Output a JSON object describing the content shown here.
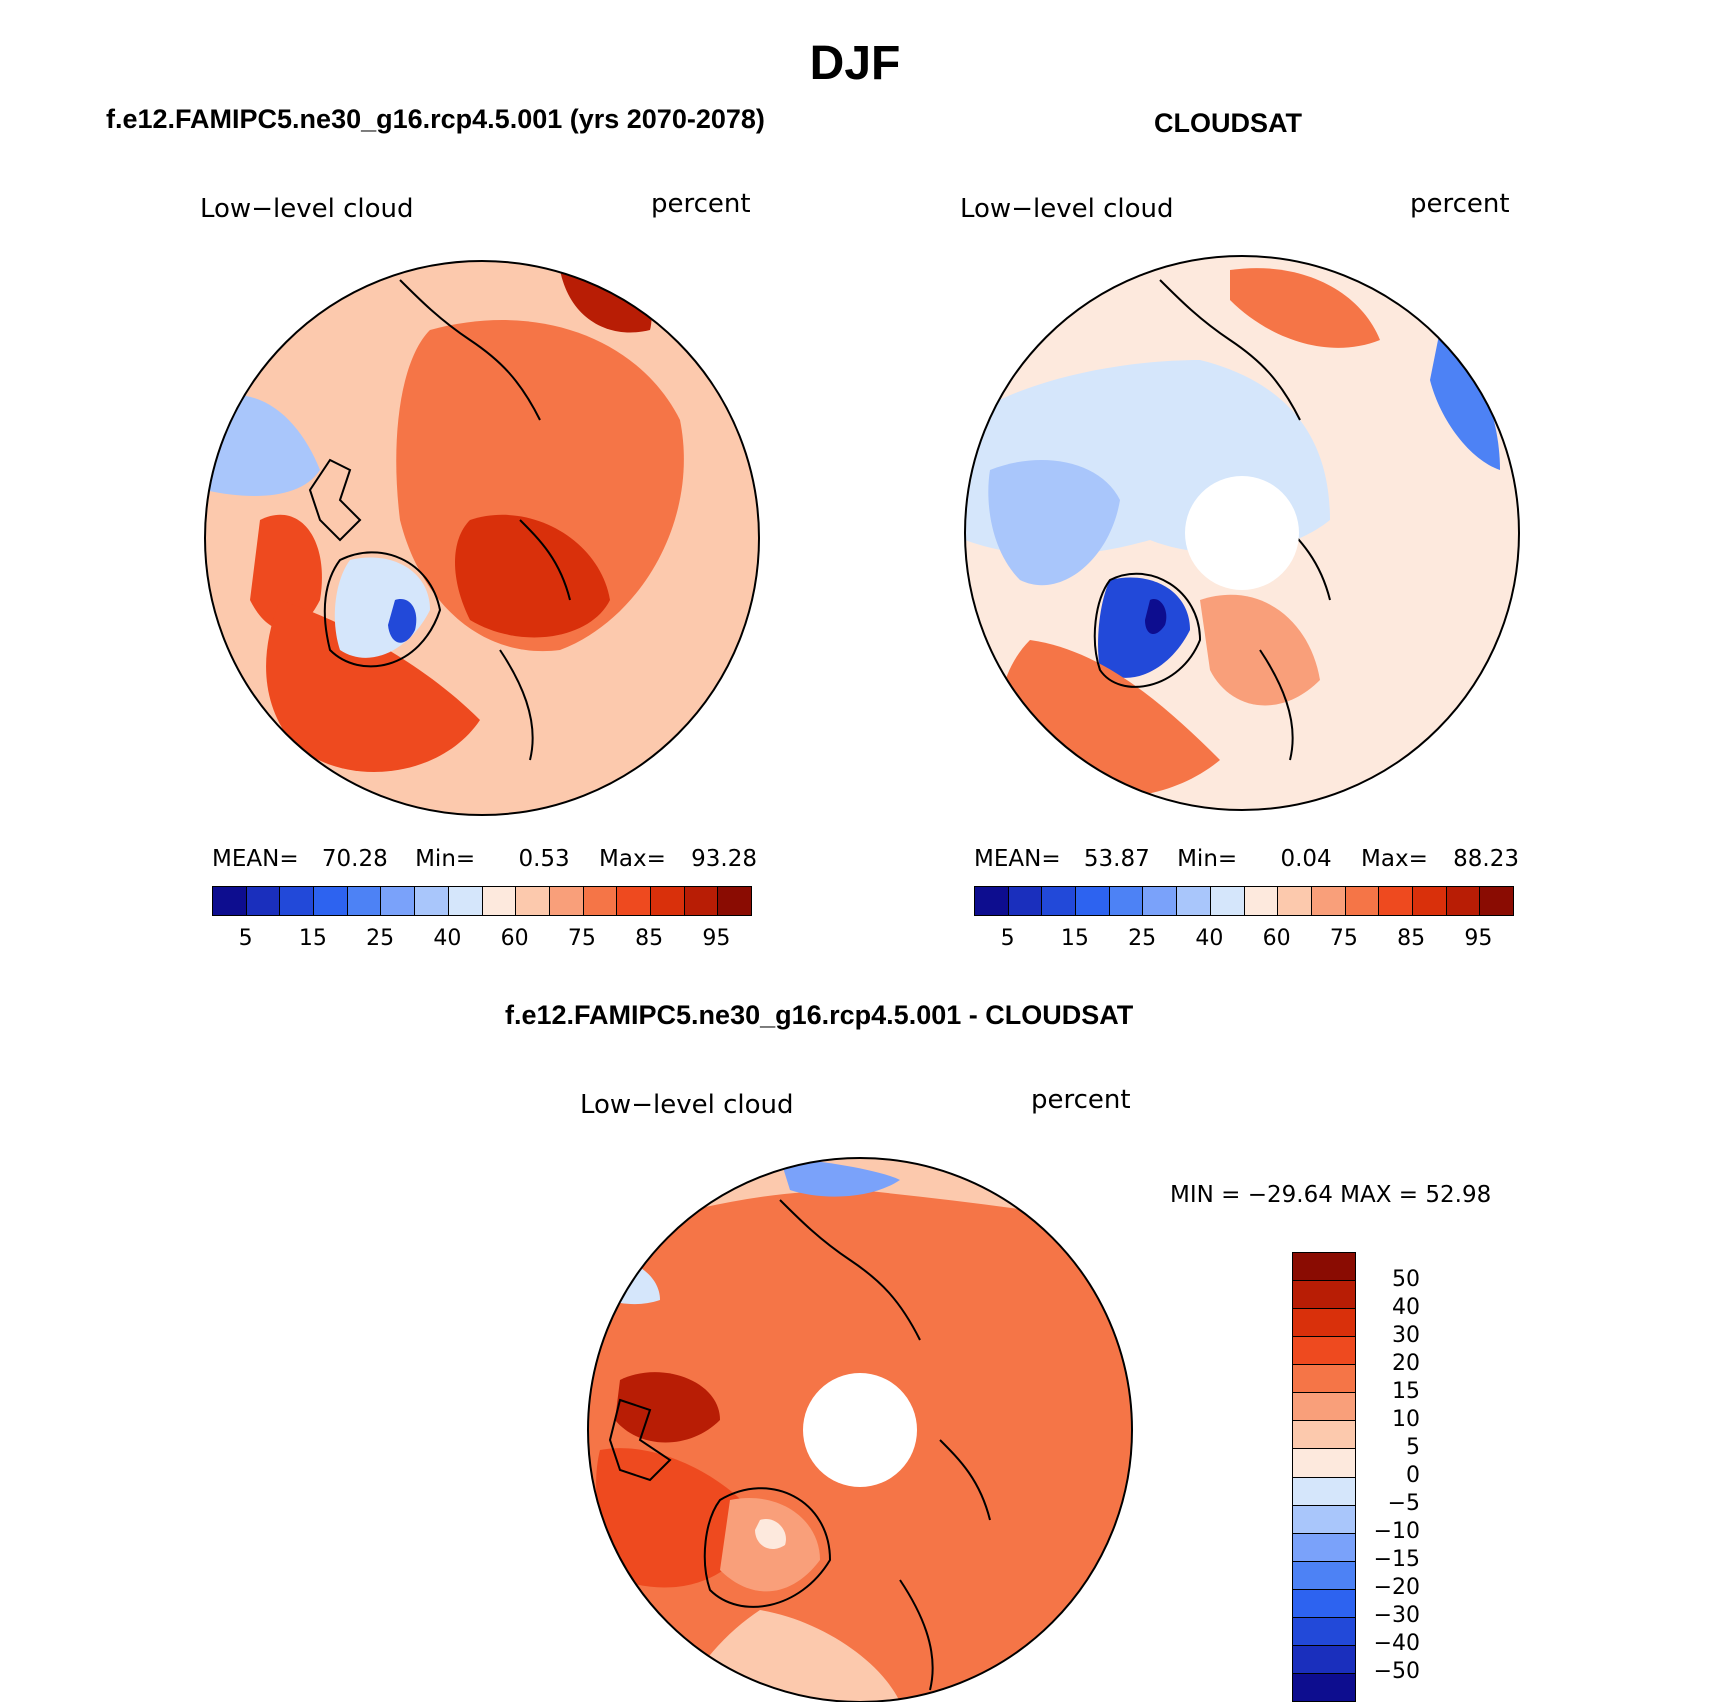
{
  "figure": {
    "title": "DJF"
  },
  "panels": [
    {
      "title": "f.e12.FAMIPC5.ne30_g16.rcp4.5.001 (yrs 2070-2078)",
      "variable": "Low−level cloud",
      "units": "percent",
      "stats": {
        "mean_label": "MEAN=",
        "mean": "70.28",
        "min_label": "Min=",
        "min": "0.53",
        "max_label": "Max=",
        "max": "93.28"
      },
      "colorbar": {
        "colors": [
          "#0d0d8f",
          "#1a2fbd",
          "#2249d9",
          "#2d63f0",
          "#4d82f5",
          "#7aa2fa",
          "#a9c6fb",
          "#d5e6fb",
          "#fde9dd",
          "#fcc9ad",
          "#f99f7a",
          "#f57547",
          "#ee4a1f",
          "#d9300b",
          "#b81d05",
          "#8a0c02"
        ],
        "tick_labels": [
          "5",
          "15",
          "25",
          "40",
          "60",
          "75",
          "85",
          "95"
        ]
      }
    },
    {
      "title": "CLOUDSAT",
      "variable": "Low−level cloud",
      "units": "percent",
      "stats": {
        "mean_label": "MEAN=",
        "mean": "53.87",
        "min_label": "Min=",
        "min": "0.04",
        "max_label": "Max=",
        "max": "88.23"
      },
      "colorbar": {
        "colors": [
          "#0d0d8f",
          "#1a2fbd",
          "#2249d9",
          "#2d63f0",
          "#4d82f5",
          "#7aa2fa",
          "#a9c6fb",
          "#d5e6fb",
          "#fde9dd",
          "#fcc9ad",
          "#f99f7a",
          "#f57547",
          "#ee4a1f",
          "#d9300b",
          "#b81d05",
          "#8a0c02"
        ],
        "tick_labels": [
          "5",
          "15",
          "25",
          "40",
          "60",
          "75",
          "85",
          "95"
        ]
      }
    },
    {
      "title": "f.e12.FAMIPC5.ne30_g16.rcp4.5.001 - CLOUDSAT",
      "variable": "Low−level cloud",
      "units": "percent",
      "stats": {
        "text": "MIN = −29.64 MAX =   52.98"
      },
      "colorbar": {
        "colors_top_to_bottom": [
          "#8a0c02",
          "#b81d05",
          "#d9300b",
          "#ee4a1f",
          "#f57547",
          "#f99f7a",
          "#fcc9ad",
          "#fde9dd",
          "#d5e6fb",
          "#a9c6fb",
          "#7aa2fa",
          "#4d82f5",
          "#2d63f0",
          "#2249d9",
          "#1a2fbd",
          "#0d0d8f"
        ],
        "tick_labels": [
          "50",
          "40",
          "30",
          "20",
          "15",
          "10",
          "5",
          "0",
          "−5",
          "−10",
          "−15",
          "−20",
          "−30",
          "−40",
          "−50"
        ]
      }
    }
  ]
}
